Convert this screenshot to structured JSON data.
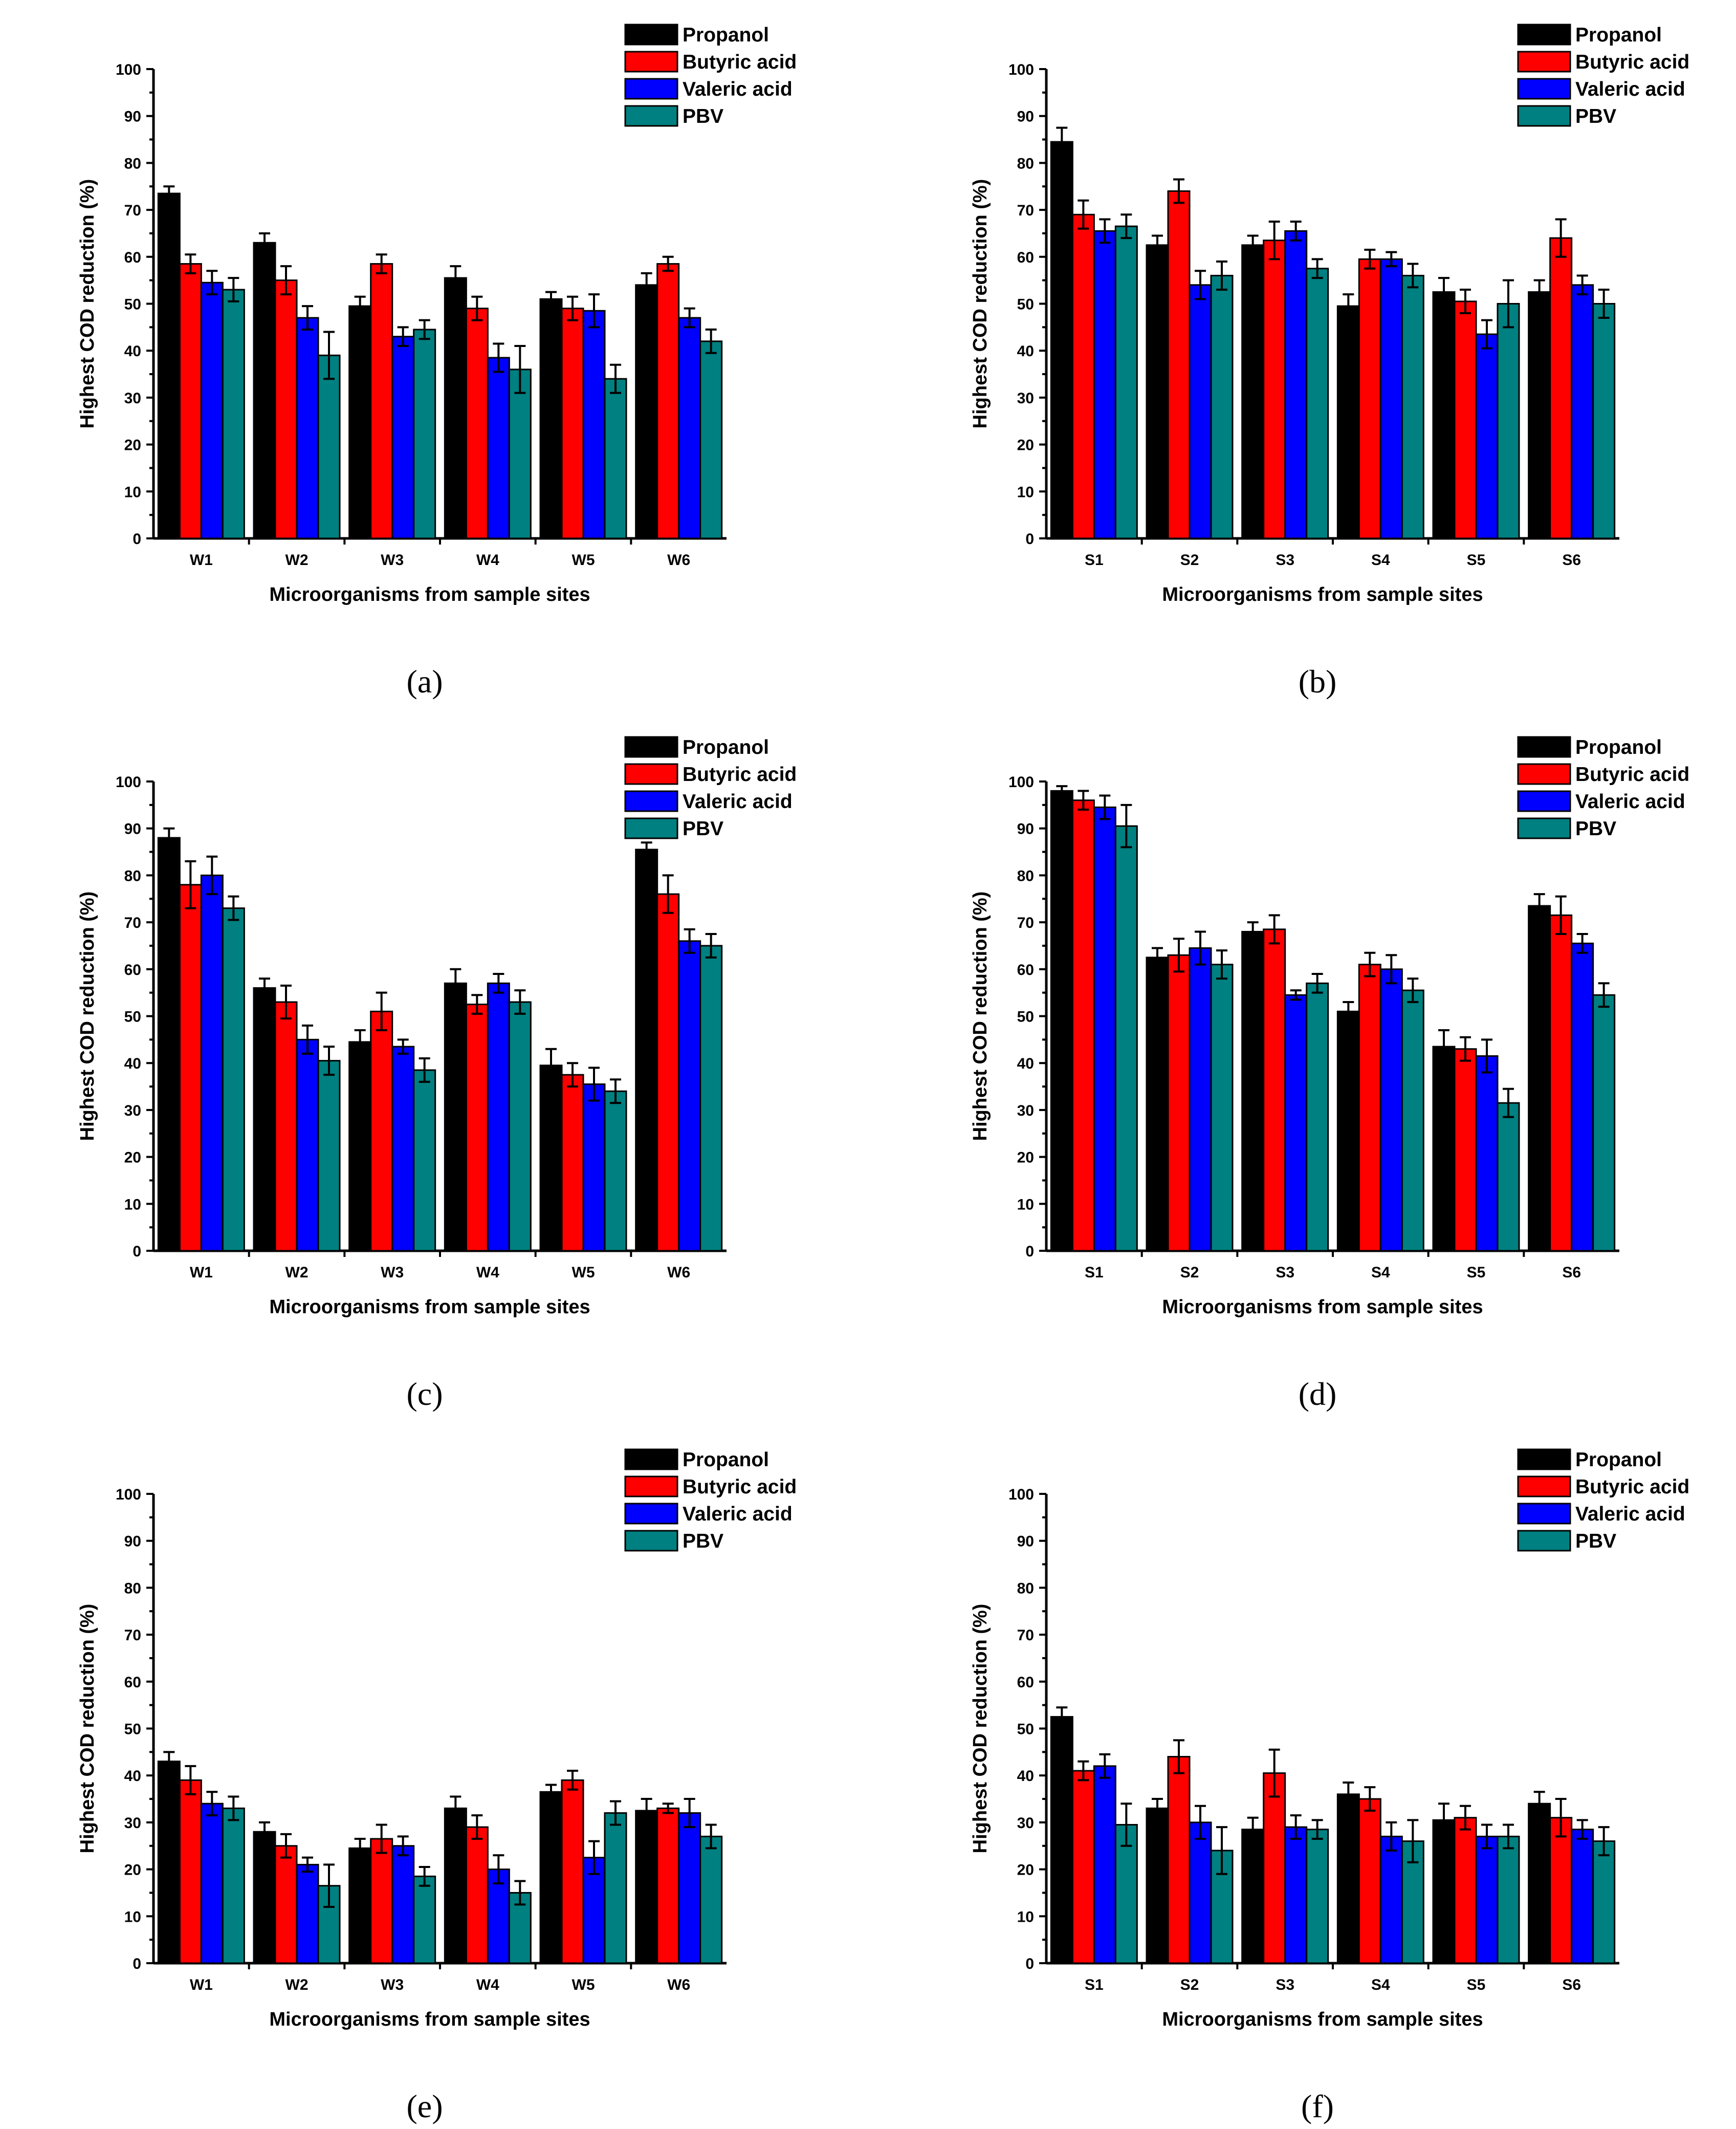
{
  "colors": {
    "Propanol": "#000000",
    "Butyric acid": "#ff0000",
    "Valeric acid": "#0000ff",
    "PBV": "#008080"
  },
  "legend": [
    "Propanol",
    "Butyric acid",
    "Valeric acid",
    "PBV"
  ],
  "ylabel": "Highest COD reduction (%)",
  "xlabel": "Microorganisms from sample sites",
  "chart_data": [
    {
      "panel": "(a)",
      "panel_letter": "a",
      "type": "bar",
      "ylim": [
        0,
        100
      ],
      "yticks": [
        0,
        10,
        20,
        30,
        40,
        50,
        60,
        70,
        80,
        90,
        100
      ],
      "categories": [
        "W1",
        "W2",
        "W3",
        "W4",
        "W5",
        "W6"
      ],
      "series": [
        {
          "name": "Propanol",
          "values": [
            73.5,
            63,
            49.5,
            55.5,
            51,
            54
          ],
          "errors": [
            1.5,
            2,
            2,
            2.5,
            1.5,
            2.5
          ]
        },
        {
          "name": "Butyric acid",
          "values": [
            58.5,
            55,
            58.5,
            49,
            49,
            58.5
          ],
          "errors": [
            2,
            3,
            2,
            2.5,
            2.5,
            1.5
          ]
        },
        {
          "name": "Valeric acid",
          "values": [
            54.5,
            47,
            43,
            38.5,
            48.5,
            47
          ],
          "errors": [
            2.5,
            2.5,
            2,
            3,
            3.5,
            2
          ]
        },
        {
          "name": "PBV",
          "values": [
            53,
            39,
            44.5,
            36,
            34,
            42
          ],
          "errors": [
            2.5,
            5,
            2,
            5,
            3,
            2.5
          ]
        }
      ]
    },
    {
      "panel": "(b)",
      "panel_letter": "b",
      "type": "bar",
      "ylim": [
        0,
        100
      ],
      "yticks": [
        0,
        10,
        20,
        30,
        40,
        50,
        60,
        70,
        80,
        90,
        100
      ],
      "categories": [
        "S1",
        "S2",
        "S3",
        "S4",
        "S5",
        "S6"
      ],
      "series": [
        {
          "name": "Propanol",
          "values": [
            84.5,
            62.5,
            62.5,
            49.5,
            52.5,
            52.5
          ],
          "errors": [
            3,
            2,
            2,
            2.5,
            3,
            2.5
          ]
        },
        {
          "name": "Butyric acid",
          "values": [
            69,
            74,
            63.5,
            59.5,
            50.5,
            64
          ],
          "errors": [
            3,
            2.5,
            4,
            2,
            2.5,
            4
          ]
        },
        {
          "name": "Valeric acid",
          "values": [
            65.5,
            54,
            65.5,
            59.5,
            43.5,
            54
          ],
          "errors": [
            2.5,
            3,
            2,
            1.5,
            3,
            2
          ]
        },
        {
          "name": "PBV",
          "values": [
            66.5,
            56,
            57.5,
            56,
            50,
            50
          ],
          "errors": [
            2.5,
            3,
            2,
            2.5,
            5,
            3
          ]
        }
      ]
    },
    {
      "panel": "(c)",
      "panel_letter": "c",
      "type": "bar",
      "ylim": [
        0,
        100
      ],
      "yticks": [
        0,
        10,
        20,
        30,
        40,
        50,
        60,
        70,
        80,
        90,
        100
      ],
      "categories": [
        "W1",
        "W2",
        "W3",
        "W4",
        "W5",
        "W6"
      ],
      "series": [
        {
          "name": "Propanol",
          "values": [
            88,
            56,
            44.5,
            57,
            39.5,
            85.5
          ],
          "errors": [
            2,
            2,
            2.5,
            3,
            3.5,
            1.5
          ]
        },
        {
          "name": "Butyric acid",
          "values": [
            78,
            53,
            51,
            52.5,
            37.5,
            76
          ],
          "errors": [
            5,
            3.5,
            4,
            2,
            2.5,
            4
          ]
        },
        {
          "name": "Valeric acid",
          "values": [
            80,
            45,
            43.5,
            57,
            35.5,
            66
          ],
          "errors": [
            4,
            3,
            1.5,
            2,
            3.5,
            2.5
          ]
        },
        {
          "name": "PBV",
          "values": [
            73,
            40.5,
            38.5,
            53,
            34,
            65
          ],
          "errors": [
            2.5,
            3,
            2.5,
            2.5,
            2.5,
            2.5
          ]
        }
      ]
    },
    {
      "panel": "(d)",
      "panel_letter": "d",
      "type": "bar",
      "ylim": [
        0,
        100
      ],
      "yticks": [
        0,
        10,
        20,
        30,
        40,
        50,
        60,
        70,
        80,
        90,
        100
      ],
      "categories": [
        "S1",
        "S2",
        "S3",
        "S4",
        "S5",
        "S6"
      ],
      "series": [
        {
          "name": "Propanol",
          "values": [
            98,
            62.5,
            68,
            51,
            43.5,
            73.5
          ],
          "errors": [
            1,
            2,
            2,
            2,
            3.5,
            2.5
          ]
        },
        {
          "name": "Butyric acid",
          "values": [
            96,
            63,
            68.5,
            61,
            43,
            71.5
          ],
          "errors": [
            2,
            3.5,
            3,
            2.5,
            2.5,
            4
          ]
        },
        {
          "name": "Valeric acid",
          "values": [
            94.5,
            64.5,
            54.5,
            60,
            41.5,
            65.5
          ],
          "errors": [
            2.5,
            3.5,
            1,
            3,
            3.5,
            2
          ]
        },
        {
          "name": "PBV",
          "values": [
            90.5,
            61,
            57,
            55.5,
            31.5,
            54.5
          ],
          "errors": [
            4.5,
            3,
            2,
            2.5,
            3,
            2.5
          ]
        }
      ]
    },
    {
      "panel": "(e)",
      "panel_letter": "e",
      "type": "bar",
      "ylim": [
        0,
        100
      ],
      "yticks": [
        0,
        10,
        20,
        30,
        40,
        50,
        60,
        70,
        80,
        90,
        100
      ],
      "categories": [
        "W1",
        "W2",
        "W3",
        "W4",
        "W5",
        "W6"
      ],
      "series": [
        {
          "name": "Propanol",
          "values": [
            43,
            28,
            24.5,
            33,
            36.5,
            32.5
          ],
          "errors": [
            2,
            2,
            2,
            2.5,
            1.5,
            2.5
          ]
        },
        {
          "name": "Butyric acid",
          "values": [
            39,
            25,
            26.5,
            29,
            39,
            33
          ],
          "errors": [
            3,
            2.5,
            3,
            2.5,
            2,
            1
          ]
        },
        {
          "name": "Valeric acid",
          "values": [
            34,
            21,
            25,
            20,
            22.5,
            32
          ],
          "errors": [
            2.5,
            1.5,
            2,
            3,
            3.5,
            3
          ]
        },
        {
          "name": "PBV",
          "values": [
            33,
            16.5,
            18.5,
            15,
            32,
            27
          ],
          "errors": [
            2.5,
            4.5,
            2,
            2.5,
            2.5,
            2.5
          ]
        }
      ]
    },
    {
      "panel": "(f)",
      "panel_letter": "f",
      "type": "bar",
      "ylim": [
        0,
        100
      ],
      "yticks": [
        0,
        10,
        20,
        30,
        40,
        50,
        60,
        70,
        80,
        90,
        100
      ],
      "categories": [
        "S1",
        "S2",
        "S3",
        "S4",
        "S5",
        "S6"
      ],
      "series": [
        {
          "name": "Propanol",
          "values": [
            52.5,
            33,
            28.5,
            36,
            30.5,
            34
          ],
          "errors": [
            2,
            2,
            2.5,
            2.5,
            3.5,
            2.5
          ]
        },
        {
          "name": "Butyric acid",
          "values": [
            41,
            44,
            40.5,
            35,
            31,
            31
          ],
          "errors": [
            2,
            3.5,
            5,
            2.5,
            2.5,
            4
          ]
        },
        {
          "name": "Valeric acid",
          "values": [
            42,
            30,
            29,
            27,
            27,
            28.5
          ],
          "errors": [
            2.5,
            3.5,
            2.5,
            3,
            2.5,
            2
          ]
        },
        {
          "name": "PBV",
          "values": [
            29.5,
            24,
            28.5,
            26,
            27,
            26
          ],
          "errors": [
            4.5,
            5,
            2,
            4.5,
            2.5,
            3
          ]
        }
      ]
    }
  ]
}
